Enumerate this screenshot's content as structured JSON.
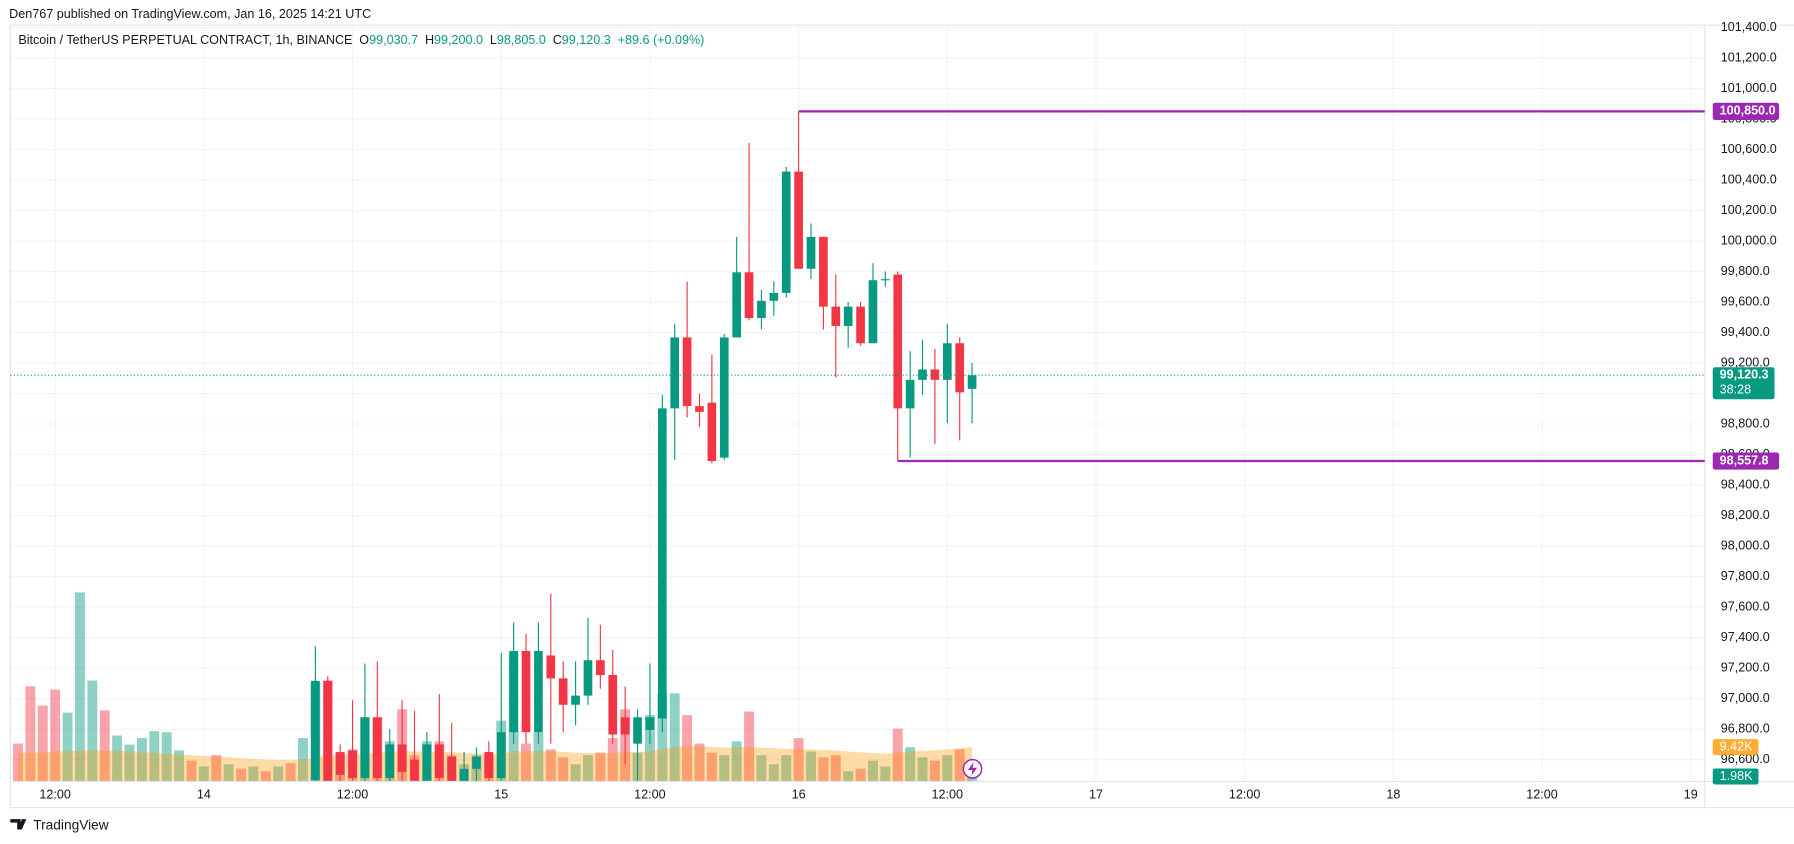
{
  "header": {
    "published": "Den767 published on TradingView.com, Jan 16, 2025 14:21 UTC",
    "footer_brand": "TradingView"
  },
  "legend": {
    "symbol": "Bitcoin / TetherUS PERPETUAL CONTRACT, 1h, BINANCE",
    "ohlc": [
      {
        "key": "O",
        "value": "99,030.7"
      },
      {
        "key": "H",
        "value": "99,200.0"
      },
      {
        "key": "L",
        "value": "98,805.0"
      },
      {
        "key": "C",
        "value": "99,120.3"
      }
    ],
    "change": "+89.6 (+0.09%)"
  },
  "chart_data": {
    "type": "candlestick",
    "up_color": "#089981",
    "down_color": "#f23645",
    "grid": true,
    "x": [
      33,
      34,
      35,
      36,
      37,
      38,
      39,
      40,
      41,
      42,
      43,
      44,
      45,
      46,
      47,
      48,
      49,
      50,
      51,
      52,
      53,
      54,
      55,
      56,
      57,
      58,
      59,
      60,
      61,
      62,
      63,
      64,
      65,
      66,
      67,
      68,
      69,
      70,
      71,
      72,
      73,
      74,
      75,
      76,
      77,
      78,
      79,
      80,
      81,
      82,
      83,
      84,
      85,
      86
    ],
    "open": [
      96465,
      97117,
      96650,
      96660,
      96480,
      96878,
      96480,
      96700,
      96600,
      96450,
      96700,
      96620,
      96460,
      96540,
      96650,
      96480,
      96780,
      97313,
      96780,
      97283,
      97133,
      96960,
      97020,
      97252,
      97155,
      96878,
      96705,
      96795,
      96870,
      98903,
      99368,
      98918,
      98940,
      98580,
      99368,
      99795,
      99495,
      99608,
      99660,
      100455,
      99818,
      100027,
      99570,
      99443,
      99570,
      99330,
      99743,
      99780,
      98903,
      99090,
      99158,
      99090,
      99330,
      99030.7
    ],
    "high": [
      97343,
      97148,
      96700,
      96990,
      97230,
      97245,
      96800,
      96990,
      96920,
      96780,
      97030,
      96840,
      96650,
      96680,
      96720,
      97300,
      97500,
      97425,
      97500,
      97688,
      97245,
      97245,
      97530,
      97485,
      97320,
      97080,
      96930,
      97230,
      98993,
      99458,
      99735,
      99000,
      99255,
      99390,
      100027,
      100642,
      99680,
      99735,
      100485,
      100850,
      100115,
      100027,
      99780,
      99600,
      99600,
      99855,
      99800,
      99800,
      99278,
      99353,
      99293,
      99458,
      99368,
      99200
    ],
    "low": [
      96443,
      96443,
      96420,
      96440,
      96440,
      96400,
      96380,
      96440,
      96400,
      96380,
      96420,
      96400,
      96380,
      96420,
      96400,
      96440,
      96705,
      96705,
      96705,
      96705,
      96780,
      96825,
      96960,
      97065,
      96705,
      96570,
      96443,
      96705,
      96780,
      98565,
      98843,
      98780,
      98543,
      98565,
      99368,
      99480,
      99420,
      99510,
      99630,
      99818,
      99750,
      99420,
      99105,
      99300,
      99315,
      99330,
      99700,
      98557.8,
      98580,
      98993,
      98670,
      98805,
      98693,
      98805
    ],
    "close": [
      97117,
      96457,
      96500,
      96480,
      96878,
      96480,
      96700,
      96520,
      96450,
      96700,
      96480,
      96460,
      96540,
      96620,
      96480,
      96780,
      97313,
      96780,
      97313,
      97133,
      96960,
      97020,
      97252,
      97155,
      96765,
      96765,
      96878,
      96878,
      98903,
      99368,
      98918,
      98880,
      98558,
      99368,
      99795,
      99495,
      99608,
      99660,
      100455,
      99818,
      100027,
      99570,
      99443,
      99570,
      99330,
      99743,
      99750,
      98903,
      99090,
      99158,
      99090,
      99330,
      99008,
      99120.3
    ],
    "xlim": [
      8.38,
      145.13
    ],
    "xticks": [
      {
        "value": 12,
        "label": "12:00"
      },
      {
        "value": 24,
        "label": "14"
      },
      {
        "value": 36,
        "label": "12:00"
      },
      {
        "value": 48,
        "label": "15"
      },
      {
        "value": 60,
        "label": "12:00"
      },
      {
        "value": 72,
        "label": "16"
      },
      {
        "value": 84,
        "label": "12:00"
      },
      {
        "value": 96,
        "label": "17"
      },
      {
        "value": 108,
        "label": "12:00"
      },
      {
        "value": 120,
        "label": "18"
      },
      {
        "value": 132,
        "label": "12:00"
      },
      {
        "value": 144,
        "label": "19"
      }
    ],
    "ylim": [
      96457.5,
      101400
    ],
    "yticks": [
      {
        "value": 96600,
        "label": "96,600.0"
      },
      {
        "value": 96800,
        "label": "96,800.0"
      },
      {
        "value": 97000,
        "label": "97,000.0"
      },
      {
        "value": 97200,
        "label": "97,200.0"
      },
      {
        "value": 97400,
        "label": "97,400.0"
      },
      {
        "value": 97600,
        "label": "97,600.0"
      },
      {
        "value": 97800,
        "label": "97,800.0"
      },
      {
        "value": 98000,
        "label": "98,000.0"
      },
      {
        "value": 98200,
        "label": "98,200.0"
      },
      {
        "value": 98400,
        "label": "98,400.0"
      },
      {
        "value": 98600,
        "label": "98,600.0"
      },
      {
        "value": 98800,
        "label": "98,800.0"
      },
      {
        "value": 99000,
        "label": "99,000.0"
      },
      {
        "value": 99200,
        "label": "99,200.0"
      },
      {
        "value": 99400,
        "label": "99,400.0"
      },
      {
        "value": 99600,
        "label": "99,600.0"
      },
      {
        "value": 99800,
        "label": "99,800.0"
      },
      {
        "value": 100000,
        "label": "100,000.0"
      },
      {
        "value": 100200,
        "label": "100,200.0"
      },
      {
        "value": 100400,
        "label": "100,400.0"
      },
      {
        "value": 100600,
        "label": "100,600.0"
      },
      {
        "value": 100800,
        "label": "100,800.0"
      },
      {
        "value": 101000,
        "label": "101,000.0"
      },
      {
        "value": 101200,
        "label": "101,200.0"
      },
      {
        "value": 101400,
        "label": "101,400.0"
      }
    ],
    "levels": [
      {
        "value": 100850,
        "label": "100,850.0",
        "start": 72,
        "color": "#9c27b0"
      },
      {
        "value": 98557.8,
        "label": "98,557.8",
        "start": 80,
        "color": "#9c27b0"
      }
    ],
    "last_price": {
      "value": 99120.3,
      "label": "99,120.3",
      "countdown": "38:28",
      "color": "#089981"
    },
    "volume": {
      "ylim": [
        0,
        207
      ],
      "x": [
        9,
        10,
        11,
        12,
        13,
        14,
        15,
        16,
        17,
        18,
        19,
        20,
        21,
        22,
        23,
        24,
        25,
        26,
        27,
        28,
        29,
        30,
        31,
        32,
        33,
        34,
        35,
        36,
        37,
        38,
        39,
        40,
        41,
        42,
        43,
        44,
        45,
        46,
        47,
        48,
        49,
        50,
        51,
        52,
        53,
        54,
        55,
        56,
        57,
        58,
        59,
        60,
        61,
        62,
        63,
        64,
        65,
        66,
        67,
        68,
        69,
        70,
        71,
        72,
        73,
        74,
        75,
        76,
        77,
        78,
        79,
        80,
        81,
        82,
        83,
        84,
        85,
        86
      ],
      "values": [
        10.4,
        26.1,
        20.8,
        25.2,
        18.9,
        51.9,
        27.7,
        19.5,
        12.6,
        10.1,
        11.9,
        13.8,
        13.5,
        8.5,
        5.7,
        4.1,
        7.2,
        4.7,
        3.5,
        4.1,
        2.8,
        4.1,
        5.0,
        11.9,
        27.4,
        27.7,
        7.9,
        8.8,
        17.6,
        17.6,
        11,
        19.8,
        7.2,
        11,
        11,
        7.2,
        4.7,
        7.2,
        7.2,
        16.7,
        34.9,
        10.4,
        13.5,
        8.8,
        6.6,
        4.7,
        7.2,
        7.9,
        11.9,
        19.8,
        7.9,
        18.2,
        24.2,
        24.2,
        18.2,
        10.4,
        7.9,
        7.2,
        11,
        19.2,
        7.2,
        4.7,
        7.2,
        11.9,
        8.2,
        6.6,
        7.2,
        2.8,
        3.5,
        5.7,
        4.1,
        14.5,
        9.4,
        6.6,
        5.7,
        7.2,
        8.8,
        1.98
      ],
      "up": [
        false,
        false,
        false,
        false,
        true,
        true,
        true,
        false,
        true,
        true,
        true,
        true,
        true,
        true,
        false,
        true,
        false,
        true,
        false,
        true,
        false,
        true,
        false,
        true,
        true,
        false,
        false,
        false,
        true,
        false,
        true,
        false,
        false,
        true,
        false,
        false,
        true,
        true,
        false,
        true,
        true,
        false,
        true,
        false,
        false,
        true,
        true,
        false,
        false,
        false,
        true,
        true,
        true,
        true,
        false,
        false,
        false,
        true,
        true,
        false,
        true,
        true,
        true,
        false,
        true,
        false,
        false,
        true,
        false,
        true,
        true,
        false,
        true,
        true,
        false,
        true,
        false,
        true
      ],
      "ma": [
        7.8,
        7.9,
        8.0,
        8.2,
        8.3,
        8.5,
        8.6,
        8.5,
        8.4,
        8.3,
        8.1,
        7.9,
        7.6,
        7.4,
        7.2,
        7.0,
        6.8,
        6.6,
        6.4,
        6.2,
        6.0,
        5.9,
        5.8,
        6.0,
        6.6,
        7.2,
        7.2,
        7.3,
        7.6,
        7.9,
        8.0,
        8.3,
        8.2,
        8.2,
        8.1,
        8.0,
        7.8,
        7.6,
        7.4,
        7.6,
        8.3,
        8.2,
        8.3,
        8.2,
        8.1,
        7.9,
        7.8,
        7.7,
        7.8,
        8.2,
        8.0,
        8.3,
        8.9,
        9.4,
        9.7,
        9.6,
        9.5,
        9.3,
        9.3,
        9.5,
        9.3,
        9.1,
        8.9,
        8.9,
        8.8,
        8.6,
        8.5,
        8.2,
        8.0,
        7.8,
        7.6,
        8.0,
        8.2,
        8.4,
        8.6,
        8.8,
        9.1,
        9.42
      ],
      "last_label": "1.98K",
      "ma_last_label": "9.42K",
      "ma_color": "#ff9800"
    }
  }
}
